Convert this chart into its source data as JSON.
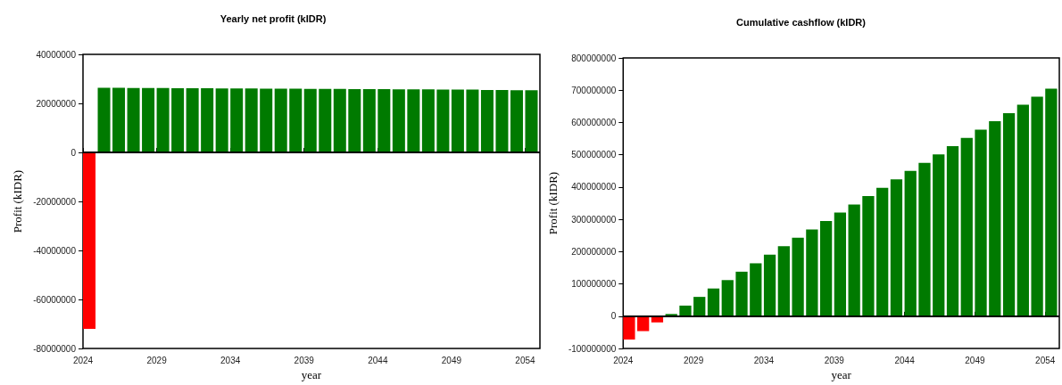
{
  "chart_data": [
    {
      "type": "histogram",
      "title": "Yearly net profit (kIDR)",
      "xlabel": "year",
      "ylabel": "Profit (kIDR)",
      "bins": [
        2024,
        2025,
        2026,
        2027,
        2028,
        2029,
        2030,
        2031,
        2032,
        2033,
        2034,
        2035,
        2036,
        2037,
        2038,
        2039,
        2040,
        2041,
        2042,
        2043,
        2044,
        2045,
        2046,
        2047,
        2048,
        2049,
        2050,
        2051,
        2052,
        2053,
        2054,
        2055
      ],
      "values": [
        -72000000,
        26400000,
        26400000,
        26300000,
        26300000,
        26300000,
        26200000,
        26200000,
        26200000,
        26100000,
        26100000,
        26100000,
        26000000,
        26000000,
        26000000,
        25900000,
        25900000,
        25900000,
        25800000,
        25800000,
        25800000,
        25700000,
        25700000,
        25700000,
        25600000,
        25600000,
        25600000,
        25500000,
        25500000,
        25400000,
        25400000
      ],
      "colors": [
        "#ff0000",
        "#007a00",
        "#007a00",
        "#007a00",
        "#007a00",
        "#007a00",
        "#007a00",
        "#007a00",
        "#007a00",
        "#007a00",
        "#007a00",
        "#007a00",
        "#007a00",
        "#007a00",
        "#007a00",
        "#007a00",
        "#007a00",
        "#007a00",
        "#007a00",
        "#007a00",
        "#007a00",
        "#007a00",
        "#007a00",
        "#007a00",
        "#007a00",
        "#007a00",
        "#007a00",
        "#007a00",
        "#007a00",
        "#007a00",
        "#007a00"
      ],
      "xlim": [
        2024,
        2055
      ],
      "xticks": [
        2024,
        2029,
        2034,
        2039,
        2044,
        2049,
        2054
      ],
      "ylim": [
        -80000000,
        40000000
      ],
      "yticks": [
        -80000000,
        -60000000,
        -40000000,
        -20000000,
        0,
        20000000,
        40000000
      ],
      "ref_lines": [
        {
          "axis": "y",
          "value": 0,
          "color": "#000000"
        }
      ]
    },
    {
      "type": "histogram",
      "title": "Cumulative cashflow (kIDR)",
      "xlabel": "year",
      "ylabel": "Profit (kIDR)",
      "bins": [
        2024,
        2025,
        2026,
        2027,
        2028,
        2029,
        2030,
        2031,
        2032,
        2033,
        2034,
        2035,
        2036,
        2037,
        2038,
        2039,
        2040,
        2041,
        2042,
        2043,
        2044,
        2045,
        2046,
        2047,
        2048,
        2049,
        2050,
        2051,
        2052,
        2053,
        2054,
        2055
      ],
      "values": [
        -72000000,
        -46000000,
        -19000000,
        7000000,
        33000000,
        60000000,
        86000000,
        112000000,
        138000000,
        164000000,
        191000000,
        217000000,
        243000000,
        269000000,
        295000000,
        321000000,
        346000000,
        372000000,
        398000000,
        424000000,
        450000000,
        475000000,
        501000000,
        527000000,
        552000000,
        578000000,
        604000000,
        629000000,
        655000000,
        680000000,
        705000000
      ],
      "colors": [
        "#ff0000",
        "#ff0000",
        "#ff0000",
        "#007a00",
        "#007a00",
        "#007a00",
        "#007a00",
        "#007a00",
        "#007a00",
        "#007a00",
        "#007a00",
        "#007a00",
        "#007a00",
        "#007a00",
        "#007a00",
        "#007a00",
        "#007a00",
        "#007a00",
        "#007a00",
        "#007a00",
        "#007a00",
        "#007a00",
        "#007a00",
        "#007a00",
        "#007a00",
        "#007a00",
        "#007a00",
        "#007a00",
        "#007a00",
        "#007a00",
        "#007a00"
      ],
      "xlim": [
        2024,
        2055
      ],
      "xticks": [
        2024,
        2029,
        2034,
        2039,
        2044,
        2049,
        2054
      ],
      "ylim": [
        -100000000,
        800000000
      ],
      "yticks": [
        -100000000,
        0,
        100000000,
        200000000,
        300000000,
        400000000,
        500000000,
        600000000,
        700000000,
        800000000
      ],
      "ref_lines": [
        {
          "axis": "y",
          "value": 0,
          "color": "#000000"
        }
      ]
    }
  ]
}
